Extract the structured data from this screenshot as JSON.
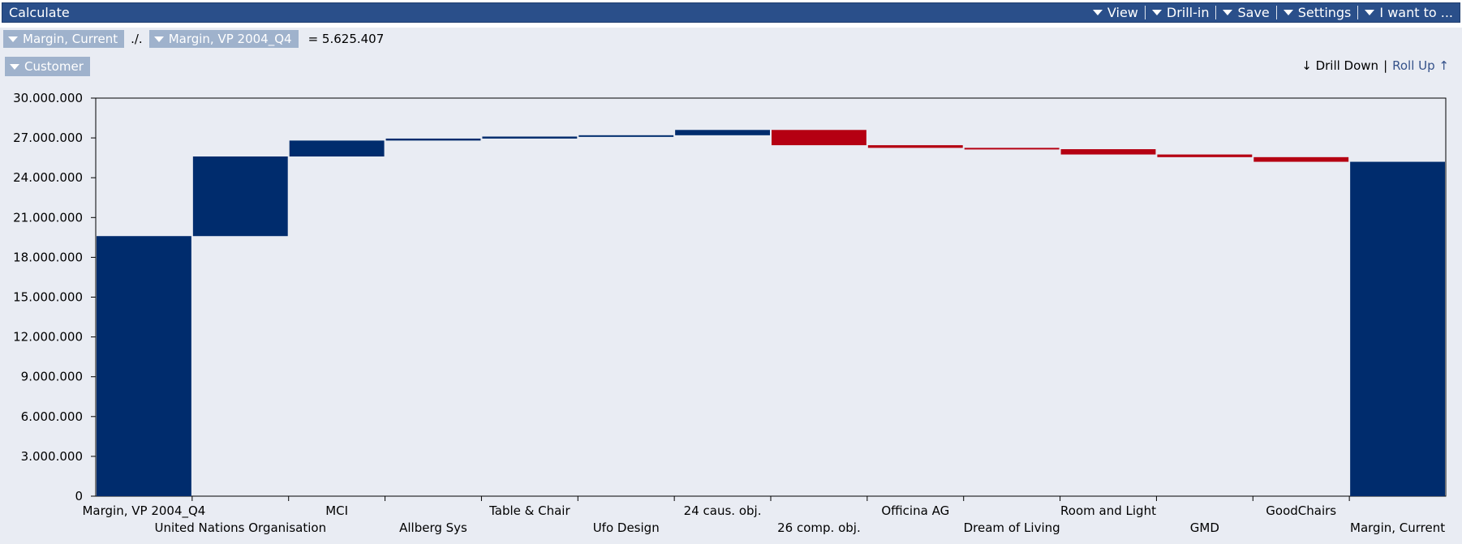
{
  "window": {
    "title": "Calculate",
    "menu": [
      "View",
      "Drill-in",
      "Save",
      "Settings",
      "I want to ..."
    ]
  },
  "formula": {
    "left_measure": "Margin, Current",
    "operator": "./.",
    "right_measure": "Margin, VP 2004_Q4",
    "result": "= 5.625.407"
  },
  "dimension": "Customer",
  "nav": {
    "drill_down": "↓ Drill Down",
    "separator": "|",
    "roll_up": "Roll Up ↑"
  },
  "colors": {
    "positive": "#002c6d",
    "negative": "#b50012",
    "background": "#e9ecf3"
  },
  "chart_data": {
    "type": "waterfall",
    "title": "",
    "xlabel": "",
    "ylabel": "",
    "ylim": [
      0,
      30000000
    ],
    "yticks": [
      0,
      3000000,
      6000000,
      9000000,
      12000000,
      15000000,
      18000000,
      21000000,
      24000000,
      27000000,
      30000000
    ],
    "ytick_labels": [
      "0",
      "3.000.000",
      "6.000.000",
      "9.000.000",
      "12.000.000",
      "15.000.000",
      "18.000.000",
      "21.000.000",
      "24.000.000",
      "27.000.000",
      "30.000.000"
    ],
    "bars": [
      {
        "label": "Margin, VP 2004_Q4",
        "start": 0,
        "end": 19600000,
        "kind": "total"
      },
      {
        "label": "United Nations Organisation",
        "start": 19600000,
        "end": 25600000,
        "kind": "increase"
      },
      {
        "label": "MCI",
        "start": 25600000,
        "end": 26800000,
        "kind": "increase"
      },
      {
        "label": "Allberg Sys",
        "start": 26800000,
        "end": 26950000,
        "kind": "increase"
      },
      {
        "label": "Table & Chair",
        "start": 26950000,
        "end": 27100000,
        "kind": "increase"
      },
      {
        "label": "Ufo Design",
        "start": 27100000,
        "end": 27200000,
        "kind": "increase"
      },
      {
        "label": "24 caus. obj.",
        "start": 27200000,
        "end": 27600000,
        "kind": "increase"
      },
      {
        "label": "26 comp. obj.",
        "start": 27600000,
        "end": 26450000,
        "kind": "decrease"
      },
      {
        "label": "Officina AG",
        "start": 26450000,
        "end": 26250000,
        "kind": "decrease"
      },
      {
        "label": "Dream of Living",
        "start": 26250000,
        "end": 26150000,
        "kind": "decrease"
      },
      {
        "label": "Room and Light",
        "start": 26150000,
        "end": 25750000,
        "kind": "decrease"
      },
      {
        "label": "GMD",
        "start": 25750000,
        "end": 25550000,
        "kind": "decrease"
      },
      {
        "label": "GoodChairs",
        "start": 25550000,
        "end": 25200000,
        "kind": "decrease"
      },
      {
        "label": "Margin, Current",
        "start": 0,
        "end": 25200000,
        "kind": "total"
      }
    ]
  }
}
